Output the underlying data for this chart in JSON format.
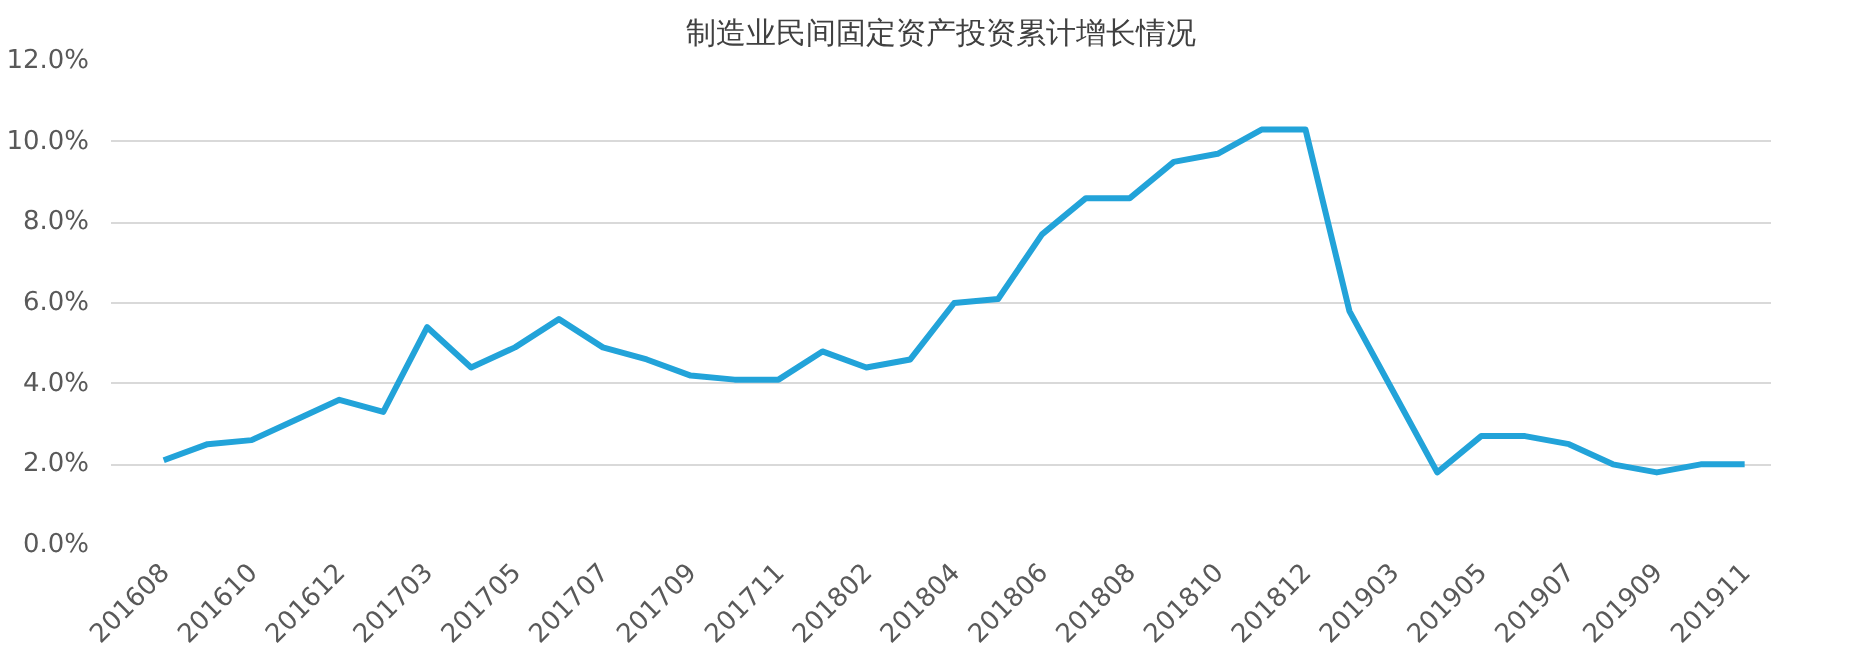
{
  "chart_data": {
    "type": "line",
    "title": "制造业民间固定资产投资累计增长情况",
    "categories": [
      "201608",
      null,
      "201610",
      null,
      "201612",
      null,
      "201703",
      null,
      "201705",
      null,
      "201707",
      null,
      "201709",
      null,
      "201711",
      null,
      "201802",
      null,
      "201804",
      null,
      "201806",
      null,
      "201808",
      null,
      "201810",
      null,
      "201812",
      null,
      "201903",
      null,
      "201905",
      null,
      "201907",
      null,
      "201909",
      null,
      "201911"
    ],
    "series": [
      {
        "color": "#22a3d9",
        "values": [
          2.1,
          2.5,
          2.6,
          3.1,
          3.6,
          3.3,
          5.4,
          4.4,
          4.9,
          5.6,
          4.9,
          4.6,
          4.2,
          4.1,
          4.1,
          4.8,
          4.4,
          4.6,
          6.0,
          6.1,
          7.7,
          8.6,
          8.6,
          9.5,
          9.7,
          10.3,
          10.3,
          5.8,
          3.8,
          1.8,
          2.7,
          2.7,
          2.5,
          2.0,
          1.8,
          2.0,
          2.0
        ]
      }
    ],
    "ylim": [
      0,
      12
    ],
    "yticks": [
      {
        "value": 0,
        "label": "0.0%"
      },
      {
        "value": 2,
        "label": "2.0%"
      },
      {
        "value": 4,
        "label": "4.0%"
      },
      {
        "value": 6,
        "label": "6.0%"
      },
      {
        "value": 8,
        "label": "8.0%"
      },
      {
        "value": 10,
        "label": "10.0%"
      },
      {
        "value": 12,
        "label": "12.0%"
      }
    ],
    "grid": "y",
    "marker": "none",
    "line_style": "solid"
  }
}
